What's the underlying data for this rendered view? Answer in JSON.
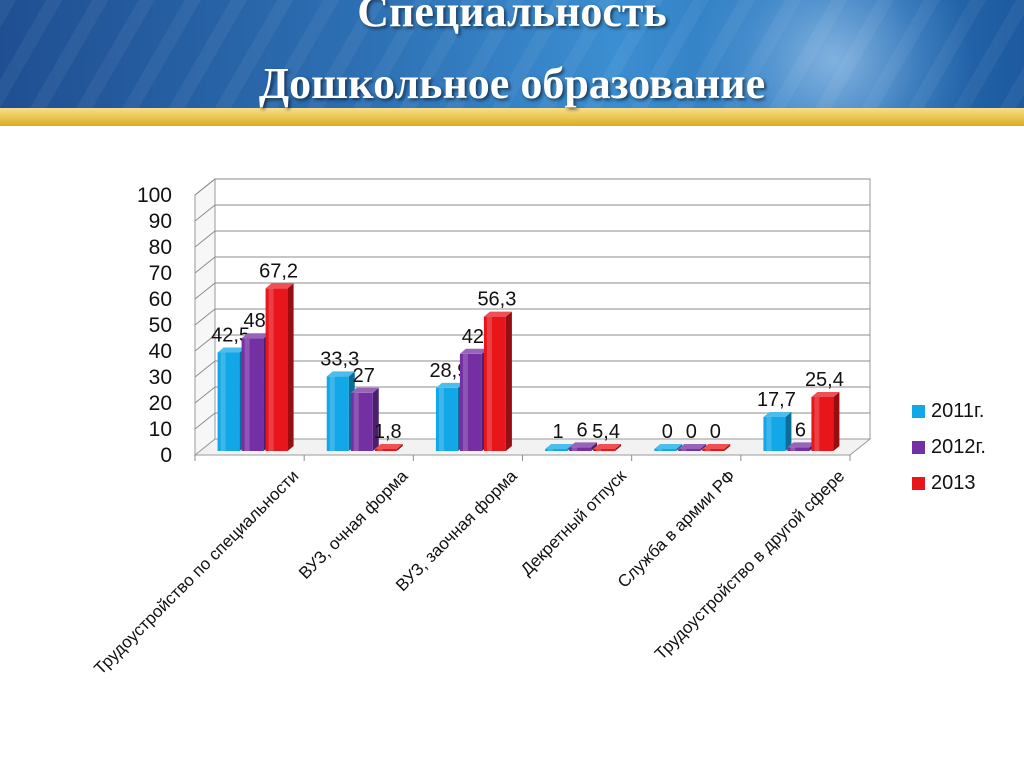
{
  "title": {
    "line1": "Специальность",
    "line2": "Дошкольное образование"
  },
  "chart_data": {
    "type": "bar",
    "categories": [
      "Трудоустройство по специальности",
      "ВУЗ, очная форма",
      "ВУЗ, заочная форма",
      "Декретный отпуск",
      "Служба в армии РФ",
      "Трудоустройство в другой сфере"
    ],
    "series": [
      {
        "name": "2011г.",
        "color": "#12a7e6",
        "values": [
          42.5,
          33.3,
          28.9,
          1,
          0,
          17.7
        ],
        "labels": [
          "42,5",
          "33,3",
          "28,9",
          "1",
          "0",
          "17,7"
        ]
      },
      {
        "name": "2012г.",
        "color": "#7430a3",
        "values": [
          48,
          27,
          42,
          6,
          0,
          6
        ],
        "labels": [
          "48",
          "27",
          "42",
          "6",
          "0",
          "6"
        ]
      },
      {
        "name": "2013",
        "color": "#e8151b",
        "values": [
          67.2,
          1.8,
          56.3,
          5.4,
          0,
          25.4
        ],
        "labels": [
          "67,2",
          "1,8",
          "56,3",
          "5,4",
          "0",
          "25,4"
        ]
      }
    ],
    "yticks": [
      "0",
      "10",
      "20",
      "30",
      "40",
      "50",
      "60",
      "70",
      "80",
      "90",
      "100"
    ],
    "ylim": [
      0,
      100
    ],
    "grid": true,
    "legend_position": "right"
  }
}
